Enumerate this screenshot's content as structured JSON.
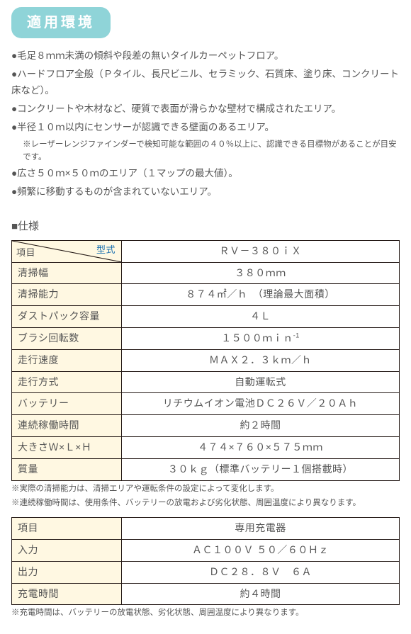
{
  "badge": "適用環境",
  "bullets": [
    {
      "text": "毛足８ｍｍ未満の傾斜や段差の無いタイルカーペットフロア。"
    },
    {
      "text": "ハードフロア全般（Ｐタイル、長尺ビニル、セラミック、石質床、塗り床、コンクリート床など）。"
    },
    {
      "text": "コンクリートや木材など、硬質で表面が滑らかな壁材で構成されたエリア。"
    },
    {
      "text": "半径１０ｍ以内にセンサーが認識できる壁面のあるエリア。",
      "sub": "※レーザーレンジファインダーで検知可能な範囲の４０％以上に、認識できる目標物があることが目安です。"
    },
    {
      "text": "広さ５０ｍ×５０ｍのエリア（１マップの最大値）。"
    },
    {
      "text": "頻繁に移動するものが含まれていないエリア。"
    }
  ],
  "spec_heading": "■仕様",
  "spec_table": {
    "diag_item": "項目",
    "diag_model": "型式",
    "model_value": "ＲＶ－３８０ｉＸ",
    "rows": [
      {
        "label": "清掃幅",
        "value": "３８０ｍｍ"
      },
      {
        "label": "清掃能力",
        "value": "８７４㎡／ｈ　（理論最大面積）"
      },
      {
        "label": "ダストパック容量",
        "value": "４Ｌ"
      },
      {
        "label": "ブラシ回転数",
        "value_html": "１５００ｍｉｎ<sup>-1</sup>"
      },
      {
        "label": "走行速度",
        "value": "ＭＡＸ２．３ｋｍ／ｈ"
      },
      {
        "label": "走行方式",
        "value": "自動運転式"
      },
      {
        "label": "バッテリー",
        "value": "リチウムイオン電池ＤＣ２６Ｖ／２０Ａｈ"
      },
      {
        "label": "連続稼働時間",
        "value": "約２時間"
      },
      {
        "label": "大きさＷ×Ｌ×Ｈ",
        "value": "４７４×７６０×５７５ｍｍ"
      },
      {
        "label": "質量",
        "value": "３０ｋｇ（標準バッテリー１個搭載時）"
      }
    ],
    "footnotes": [
      "※実際の清掃能力は、清掃エリアや運転条件の設定によって変化します。",
      "※連続稼働時間は、使用条件、バッテリーの放電および劣化状態、周囲温度により異なります。"
    ]
  },
  "charger_table": {
    "header_item": "項目",
    "header_value": "専用充電器",
    "rows": [
      {
        "label": "入力",
        "value": "ＡＣ１００Ｖ ５０／６０Ｈｚ"
      },
      {
        "label": "出力",
        "value": "ＤＣ２８．８Ｖ　６Ａ"
      },
      {
        "label": "充電時間",
        "value": "約４時間"
      }
    ],
    "footnote": "※充電時間は、バッテリーの放電状態、劣化状態、周囲温度により異なります。"
  },
  "colors": {
    "badge_bg": "#8fd4d8",
    "th_bg": "#fff8e2",
    "border": "#231815",
    "model_color": "#1a6faf",
    "text": "#555555"
  }
}
